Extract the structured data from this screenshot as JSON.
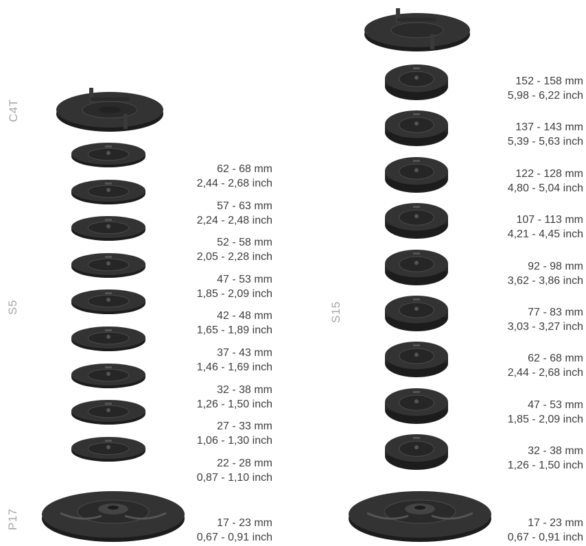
{
  "left": {
    "cap_label": "C4T",
    "stack_label": "S5",
    "base_label": "P17",
    "specs": [
      {
        "mm": "62 - 68 mm",
        "inch": "2,44 - 2,68 inch"
      },
      {
        "mm": "57 - 63 mm",
        "inch": "2,24 - 2,48 inch"
      },
      {
        "mm": "52 - 58 mm",
        "inch": "2,05 - 2,28 inch"
      },
      {
        "mm": "47 - 53 mm",
        "inch": "1,85 - 2,09 inch"
      },
      {
        "mm": "42 - 48 mm",
        "inch": "1,65 - 1,89 inch"
      },
      {
        "mm": "37 - 43 mm",
        "inch": "1,46 - 1,69 inch"
      },
      {
        "mm": "32 - 38 mm",
        "inch": "1,26 - 1,50 inch"
      },
      {
        "mm": "27 - 33 mm",
        "inch": "1,06 - 1,30 inch"
      },
      {
        "mm": "22 - 28 mm",
        "inch": "0,87 - 1,10 inch"
      }
    ],
    "base_spec": {
      "mm": "17 - 23 mm",
      "inch": "0,67 - 0,91 inch"
    }
  },
  "right": {
    "stack_label": "S15",
    "specs": [
      {
        "mm": "152 - 158 mm",
        "inch": "5,98 - 6,22 inch"
      },
      {
        "mm": "137 - 143 mm",
        "inch": "5,39 - 5,63 inch"
      },
      {
        "mm": "122 - 128 mm",
        "inch": "4,80 - 5,04 inch"
      },
      {
        "mm": "107 - 113 mm",
        "inch": "4,21 - 4,45 inch"
      },
      {
        "mm": "92 - 98 mm",
        "inch": "3,62 - 3,86 inch"
      },
      {
        "mm": "77 - 83 mm",
        "inch": "3,03 - 3,27 inch"
      },
      {
        "mm": "62 - 68 mm",
        "inch": "2,44 - 2,68 inch"
      },
      {
        "mm": "47 - 53 mm",
        "inch": "1,85 - 2,09 inch"
      },
      {
        "mm": "32 - 38 mm",
        "inch": "1,26 - 1,50 inch"
      }
    ],
    "base_spec": {
      "mm": "17 - 23 mm",
      "inch": "0,67 - 0,91 inch"
    }
  },
  "colors": {
    "part": "#2f2f2f",
    "part_dark": "#1c1c1c",
    "part_light": "#4a4a4a",
    "label": "#a6a6a6",
    "text": "#3c3c3c"
  }
}
